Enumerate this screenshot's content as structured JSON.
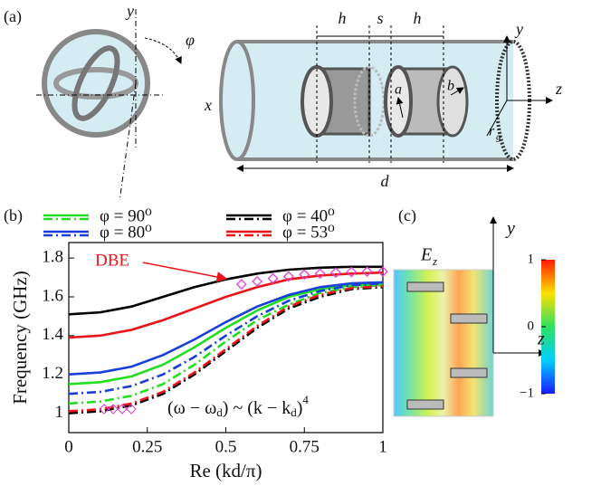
{
  "panel_labels": [
    "(a)",
    "(b)",
    "(c)"
  ],
  "diagram_a": {
    "left_labels": {
      "y": "y",
      "x": "x",
      "phi": "φ"
    },
    "right_labels": {
      "h1": "h",
      "s": "s",
      "h2": "h",
      "d": "d",
      "a": "a",
      "b": "b",
      "r": "r",
      "r_sub": "g",
      "y": "y",
      "z": "z"
    }
  },
  "chart_data": {
    "type": "line",
    "xlabel": "Re (kd/π)",
    "ylabel": "Frequency (GHz)",
    "x": [
      0,
      0.1,
      0.2,
      0.3,
      0.4,
      0.5,
      0.6,
      0.7,
      0.8,
      0.9,
      1
    ],
    "xlim": [
      0,
      1
    ],
    "ylim": [
      0.9,
      1.88
    ],
    "xticks": [
      0,
      0.25,
      0.5,
      0.75,
      1
    ],
    "yticks": [
      1,
      1.2,
      1.4,
      1.6,
      1.8
    ],
    "series": [
      {
        "name": "φ = 90⁰",
        "color": "#22dd22",
        "modes": [
          {
            "style": "solid",
            "values": [
              1.15,
              1.16,
              1.19,
              1.25,
              1.34,
              1.44,
              1.53,
              1.6,
              1.64,
              1.66,
              1.665
            ]
          },
          {
            "style": "dashdot",
            "values": [
              1.05,
              1.06,
              1.09,
              1.15,
              1.25,
              1.37,
              1.48,
              1.56,
              1.62,
              1.65,
              1.66
            ]
          }
        ]
      },
      {
        "name": "φ = 80⁰",
        "color": "#1a3fd6",
        "modes": [
          {
            "style": "solid",
            "values": [
              1.2,
              1.21,
              1.24,
              1.3,
              1.38,
              1.47,
              1.55,
              1.61,
              1.65,
              1.67,
              1.675
            ]
          },
          {
            "style": "dashdot",
            "values": [
              1.1,
              1.11,
              1.14,
              1.2,
              1.29,
              1.4,
              1.5,
              1.58,
              1.63,
              1.66,
              1.67
            ]
          }
        ]
      },
      {
        "name": "φ = 40⁰",
        "color": "#000000",
        "modes": [
          {
            "style": "solid",
            "values": [
              1.51,
              1.52,
              1.55,
              1.6,
              1.65,
              1.69,
              1.72,
              1.74,
              1.75,
              1.755,
              1.755
            ]
          },
          {
            "style": "dashdot",
            "values": [
              1.0,
              1.01,
              1.04,
              1.1,
              1.2,
              1.32,
              1.44,
              1.54,
              1.6,
              1.64,
              1.65
            ]
          }
        ]
      },
      {
        "name": "φ = 53⁰",
        "color": "#e8161b",
        "modes": [
          {
            "style": "solid",
            "values": [
              1.39,
              1.4,
              1.43,
              1.48,
              1.54,
              1.6,
              1.65,
              1.69,
              1.71,
              1.72,
              1.725
            ]
          },
          {
            "style": "dashdot",
            "values": [
              1.01,
              1.02,
              1.05,
              1.11,
              1.21,
              1.33,
              1.45,
              1.55,
              1.61,
              1.645,
              1.655
            ]
          }
        ]
      }
    ],
    "dbe": {
      "label": "DBE",
      "color": "#e040d0",
      "x": [
        0.55,
        0.6,
        0.65,
        0.7,
        0.75,
        0.8,
        0.85,
        0.9,
        0.95,
        1.0
      ],
      "y": [
        1.665,
        1.68,
        1.695,
        1.705,
        1.715,
        1.72,
        1.725,
        1.728,
        1.73,
        1.73
      ]
    },
    "annotation_parts": [
      "(ω − ω",
      "d",
      ") ~ (k − k",
      "d",
      ")",
      "4"
    ]
  },
  "field_map": {
    "title": "E",
    "title_sub": "z",
    "y_label": "y",
    "z_label": "z",
    "colorbar_range": [
      -1,
      1
    ],
    "colorbar_ticks": [
      1,
      0,
      {
        "value": -1,
        "label": "−1"
      }
    ]
  }
}
